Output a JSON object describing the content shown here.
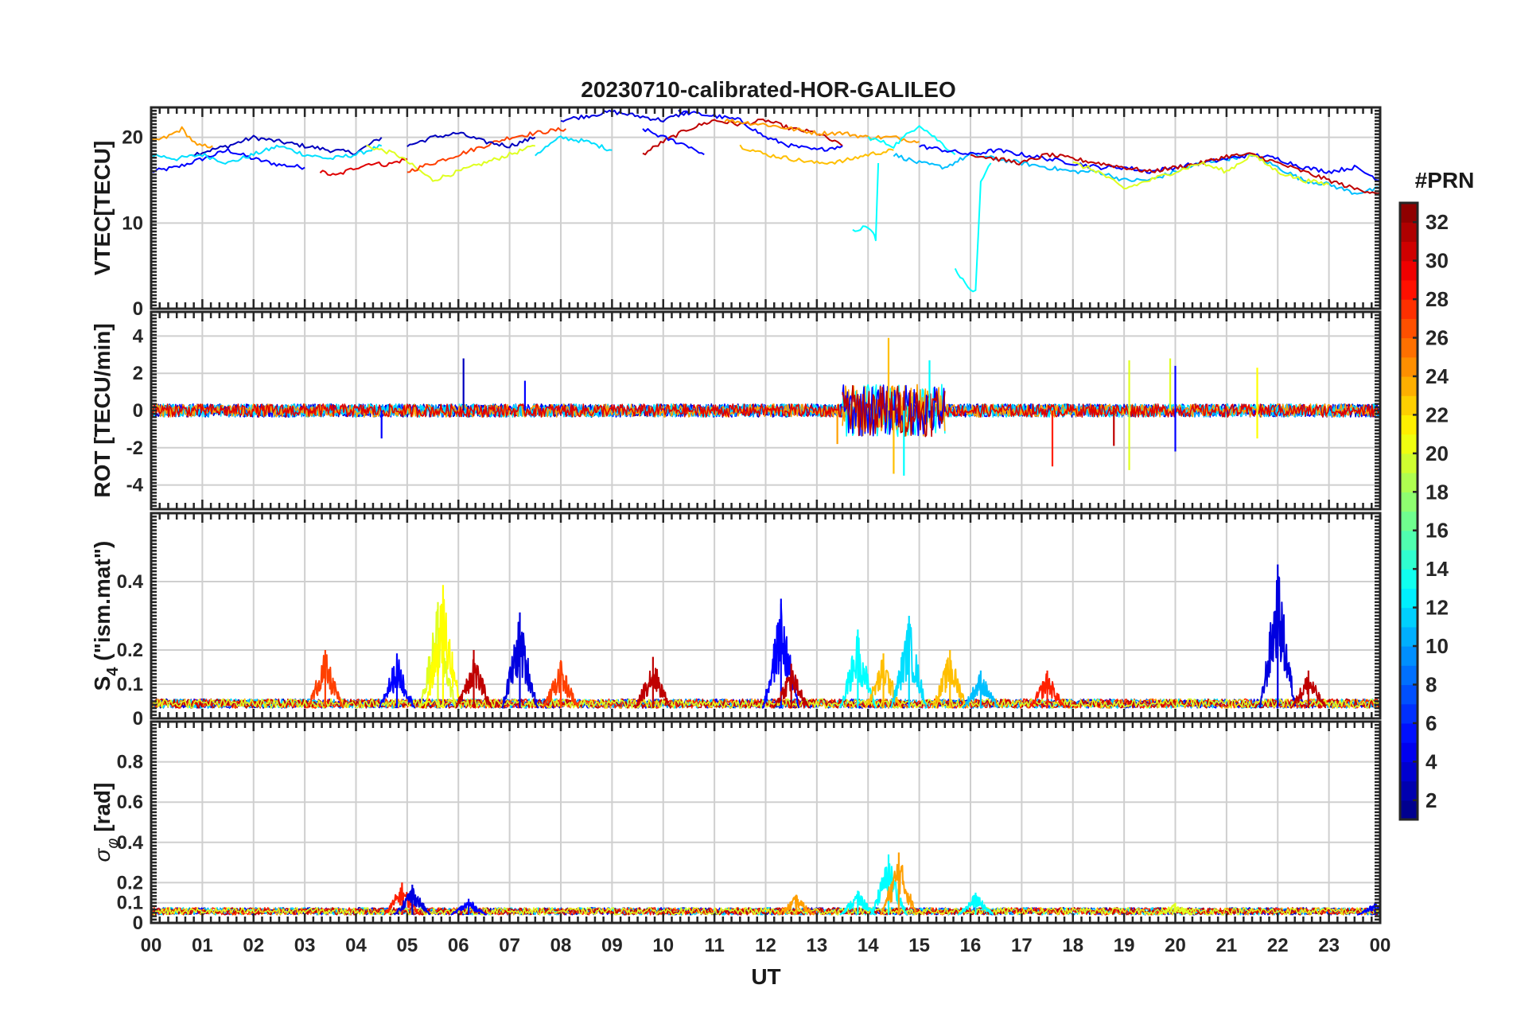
{
  "chart_data": {
    "type": "line",
    "title": "20230710-calibrated-HOR-GALILEO",
    "xlabel": "UT",
    "x_tick_labels": [
      "00",
      "01",
      "02",
      "03",
      "04",
      "05",
      "06",
      "07",
      "08",
      "09",
      "10",
      "11",
      "12",
      "13",
      "14",
      "15",
      "16",
      "17",
      "18",
      "19",
      "20",
      "21",
      "22",
      "23",
      "00"
    ],
    "xlim": [
      0,
      24
    ],
    "colorbar": {
      "title": "#PRN",
      "ticks": [
        "32",
        "30",
        "28",
        "26",
        "24",
        "22",
        "20",
        "18",
        "16",
        "14",
        "12",
        "10",
        "8",
        "6",
        "4",
        "2"
      ],
      "range": [
        1,
        33
      ],
      "colormap": "jet"
    },
    "panels": [
      {
        "id": "vtec",
        "ylabel": "VTEC[TECU]",
        "ylim": [
          0,
          23.5
        ],
        "y_ticks": [
          0,
          10,
          20
        ],
        "y_tick_labels": [
          "0",
          "10",
          "20"
        ],
        "series": [
          {
            "prn": 5,
            "x": [
              0,
              0.5,
              1,
              1.5,
              2,
              2.5,
              3
            ],
            "y": [
              16,
              16.5,
              17.5,
              18.5,
              17.5,
              16.8,
              16.5
            ]
          },
          {
            "prn": 3,
            "x": [
              0.8,
              1.5,
              2,
              2.5,
              3,
              3.5,
              4,
              4.5
            ],
            "y": [
              18,
              19,
              20,
              19.5,
              19,
              18.5,
              18.2,
              20
            ]
          },
          {
            "prn": 12,
            "x": [
              0,
              0.5,
              1,
              1.5,
              2,
              2.5,
              3,
              3.5,
              4,
              4.5
            ],
            "y": [
              18,
              17.5,
              18,
              17,
              18,
              19,
              18,
              17.5,
              18,
              19
            ]
          },
          {
            "prn": 24,
            "x": [
              0,
              0.3,
              0.6,
              0.9,
              1.2
            ],
            "y": [
              19.5,
              20,
              21,
              19,
              19
            ]
          },
          {
            "prn": 30,
            "x": [
              3.3,
              3.6,
              4,
              4.3,
              4.6,
              5
            ],
            "y": [
              16,
              15.5,
              16.5,
              17,
              16.8,
              17.5
            ]
          },
          {
            "prn": 20,
            "x": [
              4.2,
              4.8,
              5.5,
              6,
              6.5,
              7,
              7.5
            ],
            "y": [
              19,
              18,
              15,
              16,
              17,
              18,
              19
            ]
          },
          {
            "prn": 27,
            "x": [
              5,
              5.5,
              6,
              6.5,
              7,
              7.5,
              8.1
            ],
            "y": [
              16,
              17,
              18,
              19,
              20,
              20.5,
              21
            ]
          },
          {
            "prn": 3,
            "x": [
              5,
              5.5,
              6,
              6.5,
              7,
              7.5
            ],
            "y": [
              19,
              20,
              20.5,
              19.5,
              19,
              20
            ]
          },
          {
            "prn": 12,
            "x": [
              7.5,
              8,
              8.5,
              9
            ],
            "y": [
              18,
              20,
              19.5,
              18.5
            ]
          },
          {
            "prn": 4,
            "x": [
              8,
              8.5,
              9,
              9.5,
              10,
              10.5
            ],
            "y": [
              22,
              22.5,
              23,
              22.5,
              22,
              23
            ]
          },
          {
            "prn": 31,
            "x": [
              9.6,
              10,
              10.5,
              11,
              11.5,
              12,
              12.5,
              13,
              13.5
            ],
            "y": [
              18,
              19.5,
              21,
              22,
              21.5,
              22,
              21,
              20.5,
              19
            ]
          },
          {
            "prn": 5,
            "x": [
              9.6,
              10,
              10.5,
              10.8
            ],
            "y": [
              21,
              20,
              19,
              18
            ]
          },
          {
            "prn": 5,
            "x": [
              10.3,
              11,
              11.5,
              12,
              12.5,
              13,
              13.5
            ],
            "y": [
              23,
              22.5,
              22,
              20,
              19,
              18.5,
              19
            ]
          },
          {
            "prn": 24,
            "x": [
              11.2,
              12,
              12.5,
              13,
              13.5,
              14,
              14.5,
              15
            ],
            "y": [
              22,
              21.5,
              21,
              20.5,
              20.5,
              20,
              20,
              19.5
            ]
          },
          {
            "prn": 23,
            "x": [
              11.5,
              12,
              12.5,
              13,
              13.5,
              14,
              14.5
            ],
            "y": [
              19,
              18,
              17.5,
              17,
              17.2,
              18,
              18.5
            ]
          },
          {
            "prn": 13,
            "x": [
              13.7,
              13.9,
              14.1,
              14.15,
              14.2
            ],
            "y": [
              9,
              9.5,
              9,
              8,
              17
            ]
          },
          {
            "prn": 13,
            "x": [
              14,
              14.5,
              15,
              15.3,
              15.5,
              15.7
            ],
            "y": [
              20,
              19,
              21.5,
              20,
              19,
              18
            ]
          },
          {
            "prn": 11,
            "x": [
              14.5,
              15,
              15.5,
              16,
              16.5,
              17,
              17.5,
              18,
              18.5,
              19,
              19.5,
              20,
              20.5,
              21,
              21.5,
              22,
              22.5,
              23,
              23.5,
              24
            ],
            "y": [
              18,
              17,
              16.5,
              18,
              17.5,
              17,
              16.5,
              16,
              16,
              15,
              15,
              16,
              17,
              17.5,
              18,
              16.5,
              15,
              14.5,
              13.5,
              14
            ]
          },
          {
            "prn": 13,
            "x": [
              15.7,
              15.9,
              16,
              16.1,
              16.2,
              16.4
            ],
            "y": [
              4.5,
              3,
              2,
              2,
              15,
              17
            ]
          },
          {
            "prn": 5,
            "x": [
              15,
              15.5,
              16,
              16.5,
              17,
              17.5,
              18,
              18.5,
              19,
              19.5,
              20,
              20.5,
              21,
              21.5,
              22,
              22.5,
              23,
              23.5,
              24
            ],
            "y": [
              19,
              18.5,
              18,
              18.5,
              18,
              17.5,
              17,
              16.5,
              16.5,
              16,
              16.5,
              17,
              17.5,
              18,
              17.5,
              16.5,
              16,
              16.5,
              15
            ]
          },
          {
            "prn": 31,
            "x": [
              16,
              16.5,
              17,
              17.5,
              18,
              18.5,
              19,
              19.5,
              20,
              20.5,
              21,
              21.5,
              22,
              22.5,
              23,
              23.5,
              24
            ],
            "y": [
              18,
              17.5,
              17,
              18,
              17.5,
              17,
              16.5,
              16,
              16.5,
              17,
              17.8,
              18,
              17,
              16,
              15,
              14,
              13.5
            ]
          },
          {
            "prn": 20,
            "x": [
              18,
              18.5,
              19,
              19.5,
              20,
              20.5,
              21,
              21.5,
              22,
              22.5,
              23
            ],
            "y": [
              17,
              16,
              14,
              15,
              16,
              17,
              16,
              18,
              16,
              15,
              14.5
            ]
          }
        ]
      },
      {
        "id": "rot",
        "ylabel": "ROT [TECU/min]",
        "ylim": [
          -5.3,
          5.3
        ],
        "y_ticks": [
          -4,
          -2,
          0,
          2,
          4
        ],
        "y_tick_labels": [
          "-4",
          "-2",
          "0",
          "2",
          "4"
        ],
        "baseline": 0,
        "noise": [
          {
            "x0": 0,
            "x1": 24,
            "amp": 0.35,
            "prns": [
              3,
              5,
              10,
              12,
              24,
              30
            ]
          },
          {
            "x0": 13.5,
            "x1": 15.5,
            "amp": 1.4,
            "prns": [
              13,
              24,
              5,
              31
            ]
          }
        ],
        "spikes": [
          {
            "x": 6.1,
            "y": 2.8,
            "prn": 3
          },
          {
            "x": 14.4,
            "y": 3.9,
            "prn": 23
          },
          {
            "x": 14.5,
            "y": -3.4,
            "prn": 23
          },
          {
            "x": 14.7,
            "y": -3.5,
            "prn": 13
          },
          {
            "x": 13.4,
            "y": -1.8,
            "prn": 24
          },
          {
            "x": 15.2,
            "y": 2.7,
            "prn": 13
          },
          {
            "x": 17.6,
            "y": -3.0,
            "prn": 28
          },
          {
            "x": 18.8,
            "y": -1.9,
            "prn": 31
          },
          {
            "x": 19.1,
            "y": 2.7,
            "prn": 20
          },
          {
            "x": 19.1,
            "y": -3.2,
            "prn": 20
          },
          {
            "x": 19.9,
            "y": 2.8,
            "prn": 20
          },
          {
            "x": 20.0,
            "y": 2.4,
            "prn": 5
          },
          {
            "x": 20.0,
            "y": -2.2,
            "prn": 5
          },
          {
            "x": 21.6,
            "y": 2.3,
            "prn": 21
          },
          {
            "x": 21.6,
            "y": -1.5,
            "prn": 21
          },
          {
            "x": 7.3,
            "y": 1.6,
            "prn": 5
          },
          {
            "x": 4.5,
            "y": -1.5,
            "prn": 5
          }
        ]
      },
      {
        "id": "s4",
        "ylabel": "S4 (\"ism.mat\")",
        "ylim": [
          0,
          0.6
        ],
        "y_ticks": [
          0,
          0.1,
          0.2,
          0.4
        ],
        "y_tick_labels": [
          "0",
          "0.1",
          "0.2",
          "0.4"
        ],
        "baseline": 0.03,
        "bursts": [
          {
            "x": 3.4,
            "peak": 0.2,
            "prn": 27
          },
          {
            "x": 4.8,
            "peak": 0.19,
            "prn": 5
          },
          {
            "x": 5.6,
            "peak": 0.34,
            "prn": 20
          },
          {
            "x": 5.7,
            "peak": 0.39,
            "prn": 21
          },
          {
            "x": 6.3,
            "peak": 0.2,
            "prn": 31
          },
          {
            "x": 7.2,
            "peak": 0.31,
            "prn": 4
          },
          {
            "x": 8.0,
            "peak": 0.17,
            "prn": 27
          },
          {
            "x": 9.8,
            "peak": 0.18,
            "prn": 31
          },
          {
            "x": 12.3,
            "peak": 0.35,
            "prn": 5
          },
          {
            "x": 12.5,
            "peak": 0.16,
            "prn": 31
          },
          {
            "x": 13.8,
            "peak": 0.26,
            "prn": 13
          },
          {
            "x": 14.3,
            "peak": 0.19,
            "prn": 23
          },
          {
            "x": 14.8,
            "peak": 0.3,
            "prn": 12
          },
          {
            "x": 15.6,
            "peak": 0.2,
            "prn": 23
          },
          {
            "x": 16.2,
            "peak": 0.14,
            "prn": 11
          },
          {
            "x": 17.5,
            "peak": 0.14,
            "prn": 28
          },
          {
            "x": 22.0,
            "peak": 0.45,
            "prn": 4
          },
          {
            "x": 22.6,
            "peak": 0.14,
            "prn": 31
          }
        ]
      },
      {
        "id": "sigma",
        "ylabel": "σφ [rad]",
        "ylim": [
          0,
          1.0
        ],
        "y_ticks": [
          0,
          0.1,
          0.2,
          0.4,
          0.6,
          0.8
        ],
        "y_tick_labels": [
          "0",
          "0.1",
          "0.2",
          "0.4",
          "0.6",
          "0.8"
        ],
        "baseline": 0.04,
        "bursts": [
          {
            "x": 4.9,
            "peak": 0.2,
            "prn": 28
          },
          {
            "x": 5.1,
            "peak": 0.19,
            "prn": 4
          },
          {
            "x": 6.2,
            "peak": 0.12,
            "prn": 5
          },
          {
            "x": 12.6,
            "peak": 0.14,
            "prn": 24
          },
          {
            "x": 13.8,
            "peak": 0.16,
            "prn": 13
          },
          {
            "x": 14.4,
            "peak": 0.34,
            "prn": 13
          },
          {
            "x": 14.6,
            "peak": 0.35,
            "prn": 24
          },
          {
            "x": 16.1,
            "peak": 0.15,
            "prn": 13
          },
          {
            "x": 20.0,
            "peak": 0.1,
            "prn": 20
          },
          {
            "x": 23.9,
            "peak": 0.1,
            "prn": 5
          }
        ]
      }
    ]
  }
}
